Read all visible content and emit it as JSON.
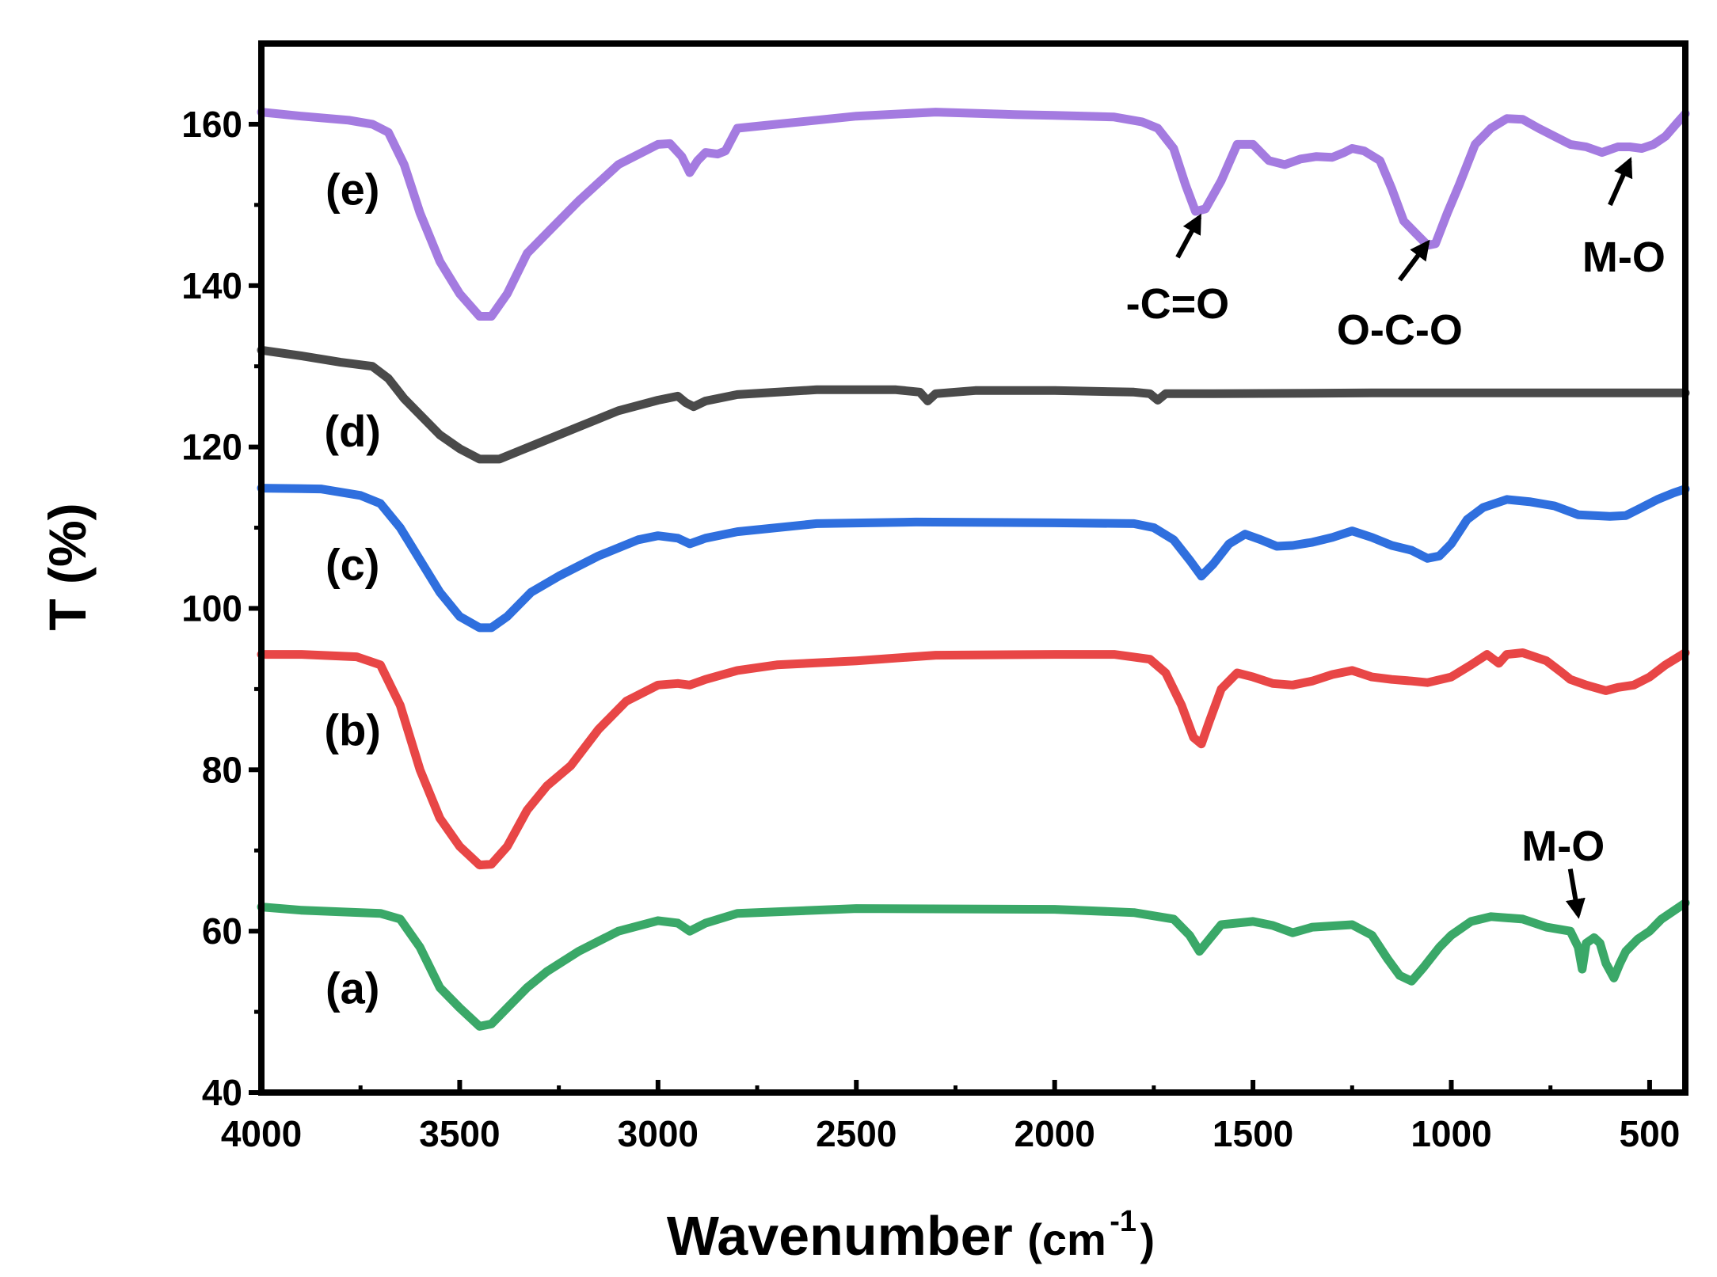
{
  "chart_data": {
    "type": "line",
    "title": "",
    "xlabel": "Wavenumber",
    "xlabel_unit_open": "(cm",
    "xlabel_unit_sup": "-1",
    "xlabel_unit_close": ")",
    "ylabel": "T (%)",
    "xlim": [
      4000,
      410
    ],
    "ylim": [
      40,
      170
    ],
    "x_ticks": [
      4000,
      3500,
      3000,
      2500,
      2000,
      1500,
      1000,
      500
    ],
    "x_tick_labels": [
      "4000",
      "3500",
      "3000",
      "2500",
      "2000",
      "1500",
      "1000",
      "500"
    ],
    "y_ticks": [
      40,
      60,
      80,
      100,
      120,
      140,
      160
    ],
    "y_tick_labels": [
      "40",
      "60",
      "80",
      "100",
      "120",
      "140",
      "160"
    ],
    "grid": false,
    "series": [
      {
        "name": "(a)",
        "color": "#3aa868",
        "label_pos": [
          3770,
          53
        ],
        "points": [
          [
            4000,
            63
          ],
          [
            3900,
            62.6
          ],
          [
            3800,
            62.4
          ],
          [
            3700,
            62.2
          ],
          [
            3650,
            61.5
          ],
          [
            3600,
            58
          ],
          [
            3550,
            53
          ],
          [
            3500,
            50.5
          ],
          [
            3450,
            48.2
          ],
          [
            3420,
            48.5
          ],
          [
            3380,
            50.5
          ],
          [
            3330,
            53
          ],
          [
            3280,
            55
          ],
          [
            3200,
            57.5
          ],
          [
            3100,
            60
          ],
          [
            3000,
            61.3
          ],
          [
            2950,
            61
          ],
          [
            2920,
            60
          ],
          [
            2880,
            61
          ],
          [
            2800,
            62.2
          ],
          [
            2500,
            62.8
          ],
          [
            2000,
            62.7
          ],
          [
            1800,
            62.3
          ],
          [
            1700,
            61.5
          ],
          [
            1660,
            59.5
          ],
          [
            1635,
            57.5
          ],
          [
            1610,
            59
          ],
          [
            1580,
            60.8
          ],
          [
            1500,
            61.2
          ],
          [
            1450,
            60.7
          ],
          [
            1400,
            59.8
          ],
          [
            1350,
            60.5
          ],
          [
            1250,
            60.8
          ],
          [
            1200,
            59.5
          ],
          [
            1160,
            56.5
          ],
          [
            1130,
            54.5
          ],
          [
            1100,
            53.8
          ],
          [
            1070,
            55.5
          ],
          [
            1030,
            58
          ],
          [
            1000,
            59.5
          ],
          [
            950,
            61.2
          ],
          [
            900,
            61.8
          ],
          [
            820,
            61.5
          ],
          [
            760,
            60.5
          ],
          [
            700,
            60
          ],
          [
            680,
            58
          ],
          [
            670,
            55.3
          ],
          [
            660,
            58.5
          ],
          [
            640,
            59.2
          ],
          [
            625,
            58.5
          ],
          [
            610,
            56
          ],
          [
            590,
            54.2
          ],
          [
            575,
            56
          ],
          [
            560,
            57.5
          ],
          [
            530,
            59
          ],
          [
            500,
            60
          ],
          [
            470,
            61.5
          ],
          [
            440,
            62.5
          ],
          [
            410,
            63.5
          ]
        ]
      },
      {
        "name": "(b)",
        "color": "#e84646",
        "label_pos": [
          3770,
          85
        ],
        "points": [
          [
            4000,
            94.3
          ],
          [
            3900,
            94.3
          ],
          [
            3760,
            94
          ],
          [
            3700,
            93
          ],
          [
            3650,
            88
          ],
          [
            3600,
            80
          ],
          [
            3550,
            74
          ],
          [
            3500,
            70.5
          ],
          [
            3450,
            68.2
          ],
          [
            3420,
            68.3
          ],
          [
            3380,
            70.5
          ],
          [
            3330,
            75
          ],
          [
            3280,
            78
          ],
          [
            3220,
            80.5
          ],
          [
            3150,
            85
          ],
          [
            3080,
            88.5
          ],
          [
            3000,
            90.5
          ],
          [
            2950,
            90.7
          ],
          [
            2920,
            90.5
          ],
          [
            2880,
            91.2
          ],
          [
            2800,
            92.3
          ],
          [
            2700,
            93
          ],
          [
            2500,
            93.5
          ],
          [
            2300,
            94.2
          ],
          [
            2000,
            94.3
          ],
          [
            1850,
            94.3
          ],
          [
            1760,
            93.7
          ],
          [
            1720,
            92
          ],
          [
            1680,
            88
          ],
          [
            1650,
            84
          ],
          [
            1630,
            83.2
          ],
          [
            1610,
            86
          ],
          [
            1580,
            90
          ],
          [
            1540,
            92
          ],
          [
            1500,
            91.5
          ],
          [
            1450,
            90.7
          ],
          [
            1400,
            90.5
          ],
          [
            1350,
            91
          ],
          [
            1300,
            91.8
          ],
          [
            1250,
            92.3
          ],
          [
            1200,
            91.5
          ],
          [
            1150,
            91.2
          ],
          [
            1100,
            91
          ],
          [
            1060,
            90.8
          ],
          [
            1000,
            91.5
          ],
          [
            950,
            93
          ],
          [
            910,
            94.3
          ],
          [
            880,
            93.2
          ],
          [
            860,
            94.3
          ],
          [
            820,
            94.5
          ],
          [
            760,
            93.5
          ],
          [
            720,
            92
          ],
          [
            700,
            91.2
          ],
          [
            660,
            90.5
          ],
          [
            610,
            89.8
          ],
          [
            580,
            90.2
          ],
          [
            540,
            90.5
          ],
          [
            500,
            91.5
          ],
          [
            460,
            93
          ],
          [
            410,
            94.5
          ]
        ]
      },
      {
        "name": "(c)",
        "color": "#2f6fde",
        "label_pos": [
          3770,
          105.5
        ],
        "points": [
          [
            4000,
            114.9
          ],
          [
            3850,
            114.8
          ],
          [
            3750,
            114
          ],
          [
            3700,
            113
          ],
          [
            3650,
            110
          ],
          [
            3600,
            106
          ],
          [
            3550,
            102
          ],
          [
            3500,
            99
          ],
          [
            3450,
            97.6
          ],
          [
            3420,
            97.6
          ],
          [
            3380,
            99
          ],
          [
            3320,
            102
          ],
          [
            3250,
            104
          ],
          [
            3150,
            106.5
          ],
          [
            3050,
            108.5
          ],
          [
            3000,
            109
          ],
          [
            2950,
            108.7
          ],
          [
            2920,
            108
          ],
          [
            2880,
            108.7
          ],
          [
            2800,
            109.5
          ],
          [
            2600,
            110.5
          ],
          [
            2350,
            110.7
          ],
          [
            2000,
            110.6
          ],
          [
            1800,
            110.5
          ],
          [
            1750,
            110
          ],
          [
            1700,
            108.5
          ],
          [
            1660,
            106
          ],
          [
            1630,
            104
          ],
          [
            1600,
            105.5
          ],
          [
            1560,
            108
          ],
          [
            1520,
            109.2
          ],
          [
            1480,
            108.5
          ],
          [
            1440,
            107.7
          ],
          [
            1400,
            107.8
          ],
          [
            1350,
            108.2
          ],
          [
            1300,
            108.8
          ],
          [
            1250,
            109.6
          ],
          [
            1200,
            108.8
          ],
          [
            1150,
            107.8
          ],
          [
            1100,
            107.2
          ],
          [
            1060,
            106.2
          ],
          [
            1030,
            106.5
          ],
          [
            1000,
            108
          ],
          [
            960,
            111
          ],
          [
            920,
            112.5
          ],
          [
            860,
            113.5
          ],
          [
            800,
            113.2
          ],
          [
            740,
            112.7
          ],
          [
            680,
            111.6
          ],
          [
            640,
            111.5
          ],
          [
            600,
            111.4
          ],
          [
            560,
            111.5
          ],
          [
            520,
            112.5
          ],
          [
            480,
            113.5
          ],
          [
            440,
            114.3
          ],
          [
            410,
            114.8
          ]
        ]
      },
      {
        "name": "(d)",
        "color": "#4a4a4a",
        "label_pos": [
          3770,
          122
        ],
        "points": [
          [
            4000,
            132
          ],
          [
            3900,
            131.3
          ],
          [
            3800,
            130.5
          ],
          [
            3720,
            130
          ],
          [
            3680,
            128.5
          ],
          [
            3640,
            126
          ],
          [
            3600,
            124
          ],
          [
            3550,
            121.5
          ],
          [
            3500,
            119.8
          ],
          [
            3450,
            118.5
          ],
          [
            3400,
            118.5
          ],
          [
            3350,
            119.5
          ],
          [
            3300,
            120.5
          ],
          [
            3200,
            122.5
          ],
          [
            3100,
            124.5
          ],
          [
            3000,
            125.8
          ],
          [
            2950,
            126.3
          ],
          [
            2930,
            125.5
          ],
          [
            2910,
            125
          ],
          [
            2880,
            125.7
          ],
          [
            2800,
            126.5
          ],
          [
            2600,
            127.1
          ],
          [
            2400,
            127.1
          ],
          [
            2340,
            126.8
          ],
          [
            2320,
            125.7
          ],
          [
            2300,
            126.6
          ],
          [
            2200,
            127
          ],
          [
            2000,
            127
          ],
          [
            1800,
            126.8
          ],
          [
            1760,
            126.6
          ],
          [
            1740,
            125.8
          ],
          [
            1720,
            126.6
          ],
          [
            1600,
            126.6
          ],
          [
            1200,
            126.7
          ],
          [
            800,
            126.7
          ],
          [
            410,
            126.7
          ]
        ]
      },
      {
        "name": "(e)",
        "color": "#a47be0",
        "label_pos": [
          3770,
          152
        ],
        "points": [
          [
            4000,
            161.5
          ],
          [
            3900,
            161
          ],
          [
            3780,
            160.5
          ],
          [
            3720,
            160
          ],
          [
            3680,
            159
          ],
          [
            3640,
            155
          ],
          [
            3600,
            149
          ],
          [
            3550,
            143
          ],
          [
            3500,
            139
          ],
          [
            3450,
            136.2
          ],
          [
            3420,
            136.2
          ],
          [
            3380,
            139
          ],
          [
            3330,
            144
          ],
          [
            3270,
            147
          ],
          [
            3200,
            150.5
          ],
          [
            3100,
            155
          ],
          [
            3000,
            157.5
          ],
          [
            2970,
            157.6
          ],
          [
            2940,
            156
          ],
          [
            2920,
            154
          ],
          [
            2900,
            155.5
          ],
          [
            2880,
            156.5
          ],
          [
            2850,
            156.3
          ],
          [
            2830,
            156.7
          ],
          [
            2800,
            159.5
          ],
          [
            2700,
            160
          ],
          [
            2500,
            161
          ],
          [
            2300,
            161.5
          ],
          [
            2100,
            161.2
          ],
          [
            2000,
            161.1
          ],
          [
            1850,
            160.9
          ],
          [
            1780,
            160.3
          ],
          [
            1740,
            159.5
          ],
          [
            1700,
            157
          ],
          [
            1670,
            152.5
          ],
          [
            1645,
            149.2
          ],
          [
            1620,
            149.5
          ],
          [
            1580,
            153
          ],
          [
            1540,
            157.5
          ],
          [
            1500,
            157.5
          ],
          [
            1460,
            155.5
          ],
          [
            1420,
            155
          ],
          [
            1380,
            155.7
          ],
          [
            1340,
            156
          ],
          [
            1300,
            155.9
          ],
          [
            1270,
            156.5
          ],
          [
            1250,
            157
          ],
          [
            1220,
            156.7
          ],
          [
            1180,
            155.5
          ],
          [
            1150,
            152
          ],
          [
            1120,
            148
          ],
          [
            1090,
            146.5
          ],
          [
            1060,
            145
          ],
          [
            1040,
            145.2
          ],
          [
            1010,
            149
          ],
          [
            980,
            152.5
          ],
          [
            940,
            157.5
          ],
          [
            900,
            159.5
          ],
          [
            860,
            160.7
          ],
          [
            820,
            160.6
          ],
          [
            780,
            159.5
          ],
          [
            740,
            158.5
          ],
          [
            700,
            157.5
          ],
          [
            660,
            157.2
          ],
          [
            620,
            156.5
          ],
          [
            580,
            157.2
          ],
          [
            550,
            157.2
          ],
          [
            520,
            157
          ],
          [
            490,
            157.5
          ],
          [
            460,
            158.5
          ],
          [
            430,
            160.2
          ],
          [
            410,
            161.3
          ]
        ]
      }
    ],
    "annotations": [
      {
        "text": "-C=O",
        "text_pos": [
          1690,
          137.7
        ],
        "arrow_from": [
          1690,
          143.5
        ],
        "arrow_to": [
          1635,
          148.5
        ]
      },
      {
        "text": "O-C-O",
        "text_pos": [
          1130,
          134.5
        ],
        "arrow_from": [
          1130,
          140.7
        ],
        "arrow_to": [
          1060,
          145.3
        ]
      },
      {
        "text": "M-O",
        "text_pos": [
          565,
          143.5
        ],
        "arrow_from": [
          600,
          150
        ],
        "arrow_to": [
          550,
          155.5
        ]
      },
      {
        "text": "M-O",
        "text_pos": [
          718,
          70.5
        ],
        "arrow_from": [
          700,
          67.7
        ],
        "arrow_to": [
          680,
          62
        ]
      }
    ]
  }
}
